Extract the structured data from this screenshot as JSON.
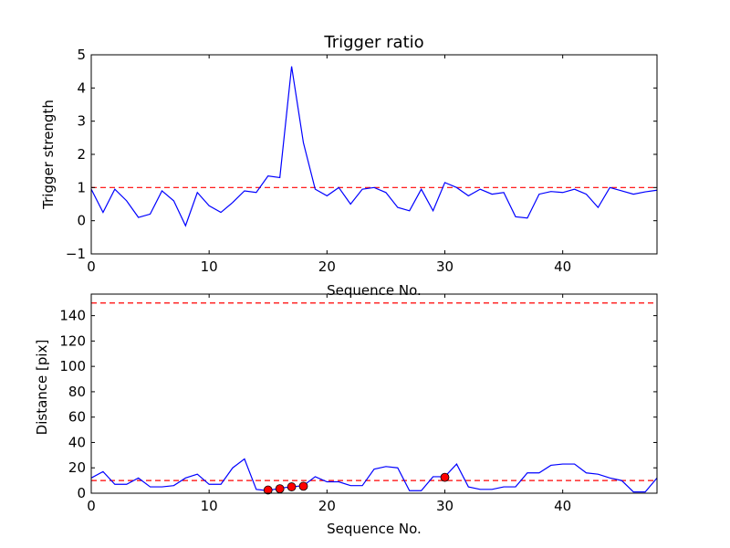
{
  "colors": {
    "line": "#0000ff",
    "threshold": "#ff0000",
    "marker": "#ff0000",
    "axes": "#000000",
    "background": "#ffffff"
  },
  "chart_data": [
    {
      "type": "line",
      "title": "Trigger ratio",
      "xlabel": "Sequence No.",
      "ylabel": "Trigger strength",
      "xlim": [
        0,
        48
      ],
      "ylim": [
        -1,
        5
      ],
      "grid": false,
      "xticks": [
        0,
        10,
        20,
        30,
        40
      ],
      "yticks": [
        -1,
        0,
        1,
        2,
        3,
        4,
        5
      ],
      "threshold": 1,
      "series": [
        {
          "name": "trigger strength",
          "x": [
            0,
            1,
            2,
            3,
            4,
            5,
            6,
            7,
            8,
            9,
            10,
            11,
            12,
            13,
            14,
            15,
            16,
            17,
            18,
            19,
            20,
            21,
            22,
            23,
            24,
            25,
            26,
            27,
            28,
            29,
            30,
            31,
            32,
            33,
            34,
            35,
            36,
            37,
            38,
            39,
            40,
            41,
            42,
            43,
            44,
            45,
            46,
            47,
            48
          ],
          "y": [
            0.95,
            0.25,
            0.95,
            0.6,
            0.1,
            0.2,
            0.9,
            0.6,
            -0.15,
            0.85,
            0.45,
            0.25,
            0.55,
            0.9,
            0.85,
            1.35,
            1.3,
            4.65,
            2.35,
            0.95,
            0.75,
            1.0,
            0.5,
            0.95,
            1.0,
            0.85,
            0.4,
            0.3,
            0.95,
            0.3,
            1.15,
            1.0,
            0.75,
            0.95,
            0.8,
            0.85,
            0.12,
            0.08,
            0.8,
            0.88,
            0.85,
            0.95,
            0.8,
            0.4,
            1.0,
            0.9,
            0.8,
            0.87,
            0.92
          ]
        }
      ]
    },
    {
      "type": "line",
      "title": "",
      "xlabel": "Sequence No.",
      "ylabel": "Distance [pix]",
      "xlim": [
        0,
        48
      ],
      "ylim": [
        0,
        157
      ],
      "grid": false,
      "xticks": [
        0,
        10,
        20,
        30,
        40
      ],
      "yticks": [
        0,
        20,
        40,
        60,
        80,
        100,
        120,
        140
      ],
      "thresholds": [
        10,
        150
      ],
      "series": [
        {
          "name": "distance",
          "x": [
            0,
            1,
            2,
            3,
            4,
            5,
            6,
            7,
            8,
            9,
            10,
            11,
            12,
            13,
            14,
            15,
            16,
            17,
            18,
            19,
            20,
            21,
            22,
            23,
            24,
            25,
            26,
            27,
            28,
            29,
            30,
            31,
            32,
            33,
            34,
            35,
            36,
            37,
            38,
            39,
            40,
            41,
            42,
            43,
            44,
            45,
            46,
            47,
            48
          ],
          "y": [
            12,
            17,
            7,
            7,
            12,
            5,
            5,
            6,
            12,
            15,
            7,
            7,
            20,
            27,
            3,
            2,
            4,
            5,
            6,
            13,
            9,
            9,
            6,
            6,
            19,
            21,
            20,
            2,
            2,
            13,
            13,
            23,
            5,
            3,
            3,
            5,
            5,
            16,
            16,
            22,
            23,
            23,
            16,
            15,
            12,
            10,
            1,
            1,
            12
          ]
        },
        {
          "name": "markers",
          "x": [
            15,
            16,
            17,
            18,
            30
          ],
          "y": [
            2.5,
            3.5,
            5,
            5.5,
            12.5
          ]
        }
      ]
    }
  ]
}
